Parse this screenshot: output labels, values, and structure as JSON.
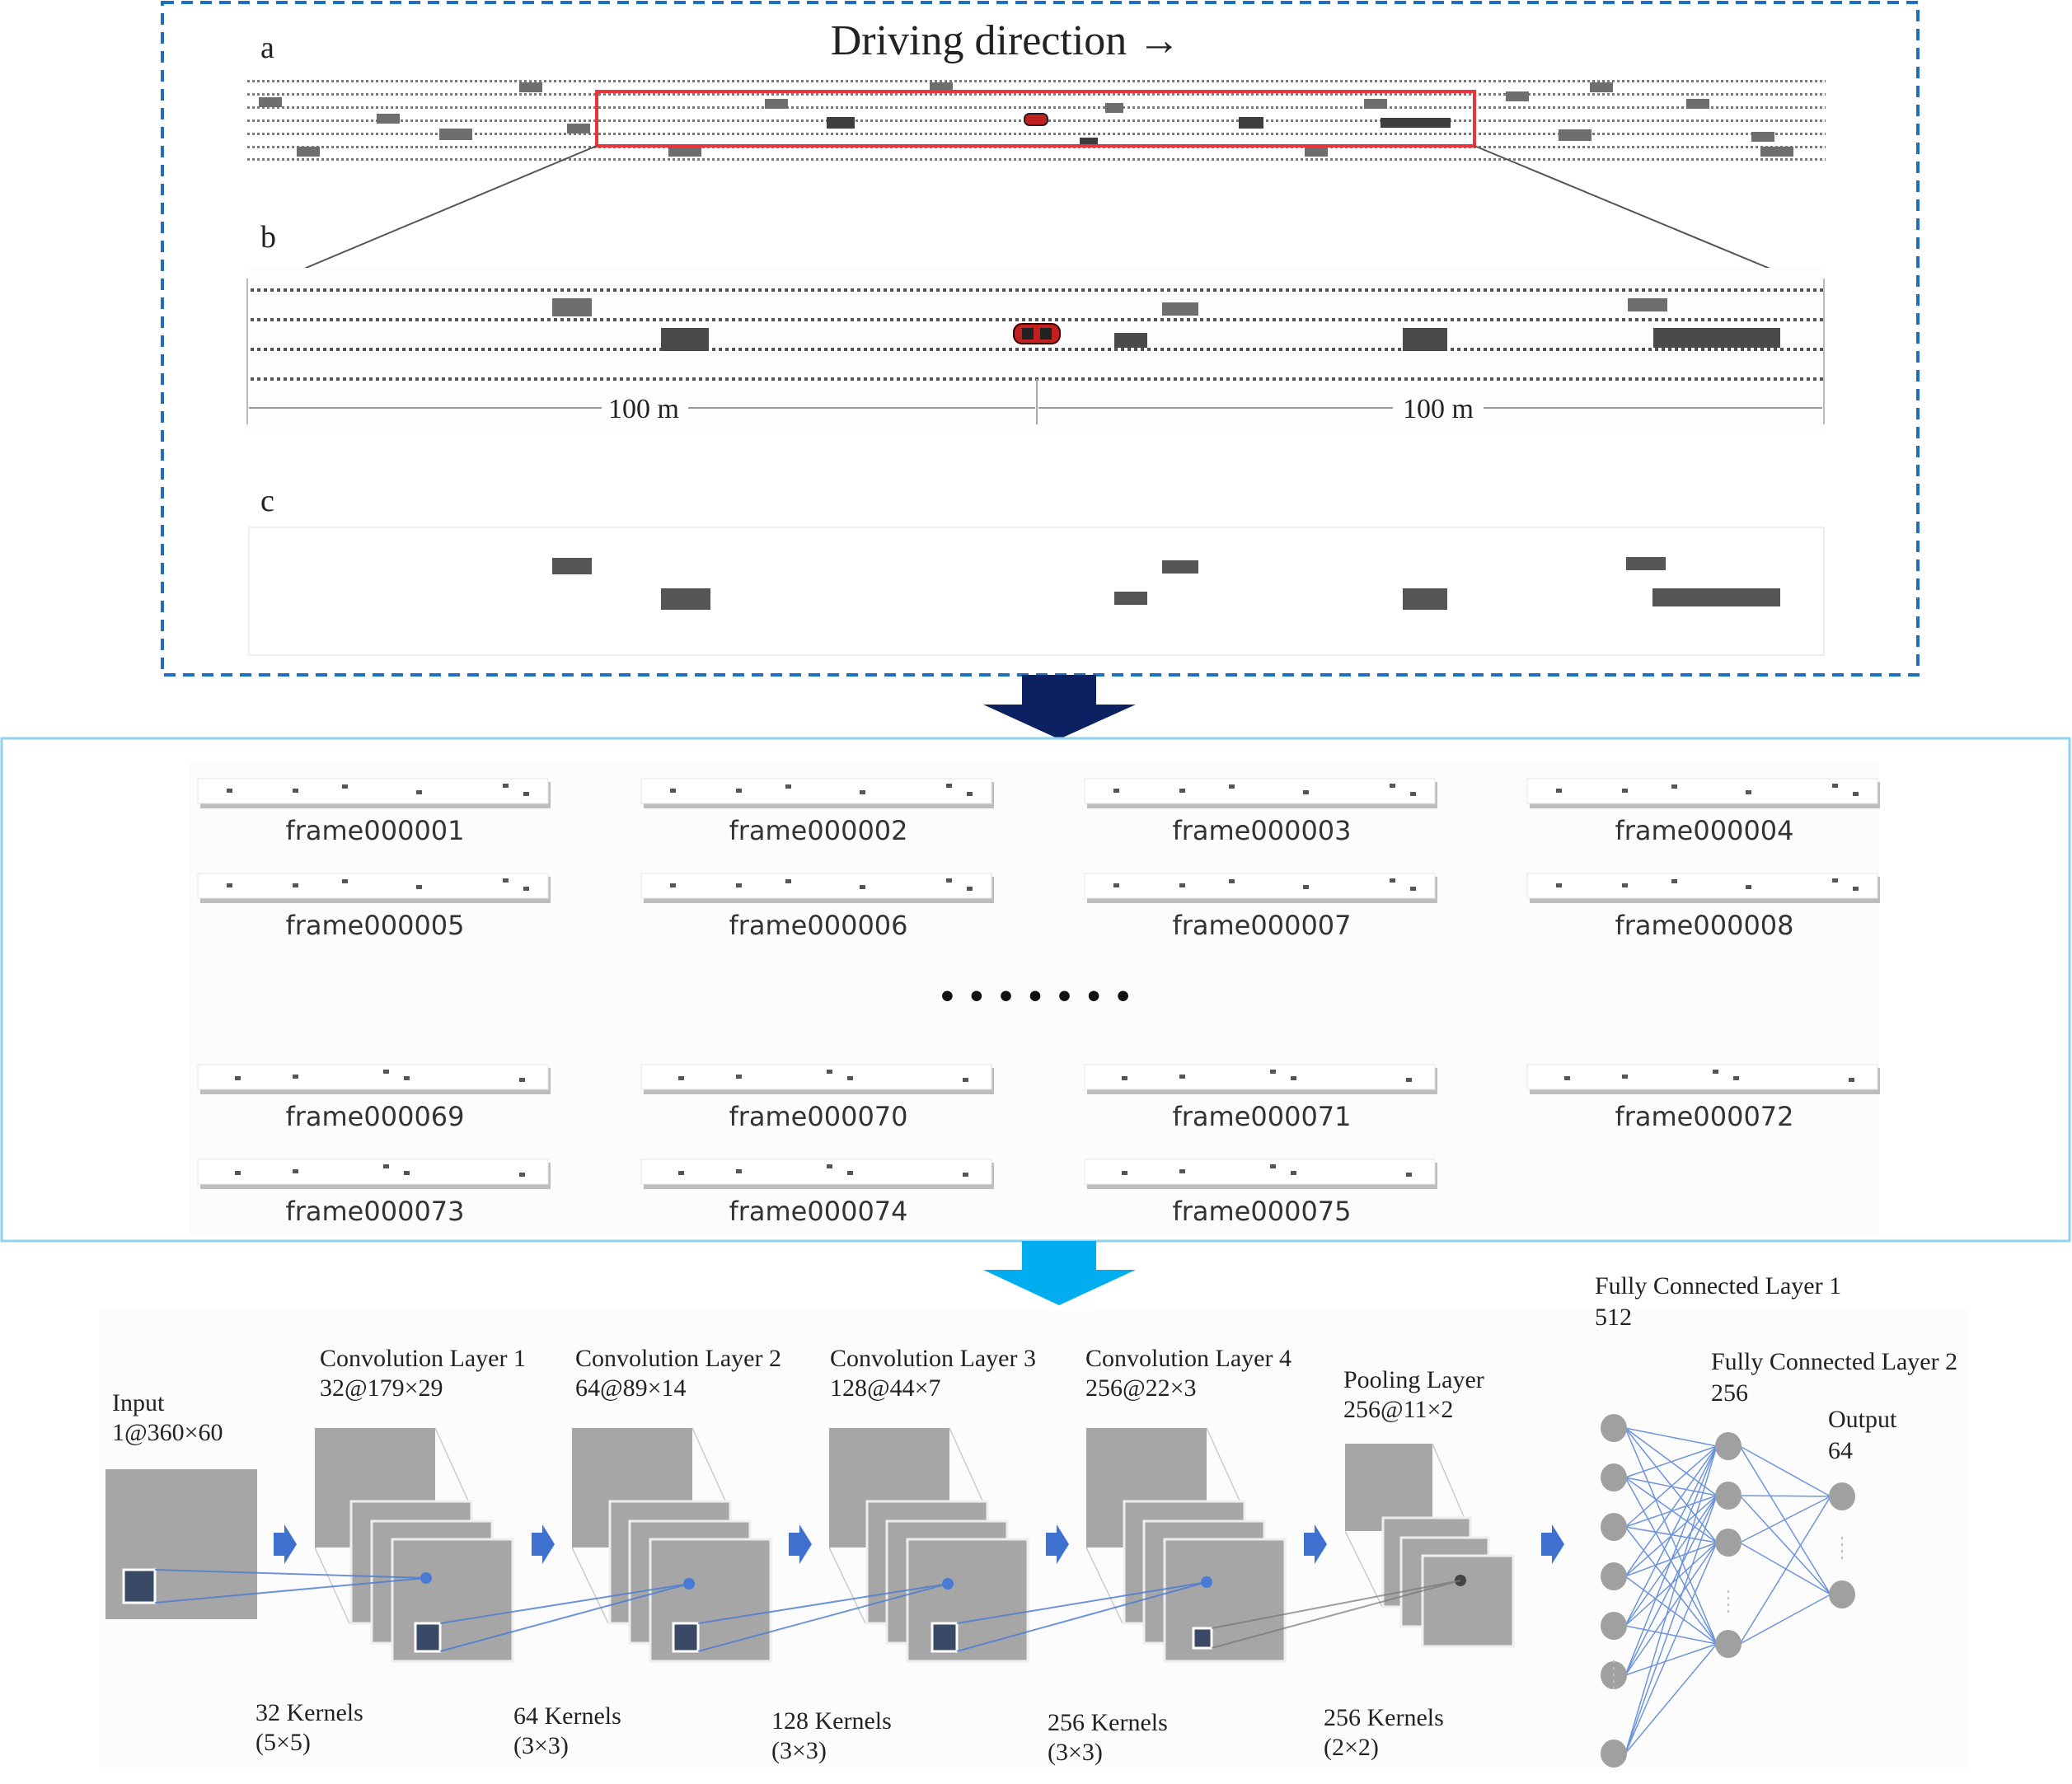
{
  "panel_top": {
    "title": "Driving direction →",
    "labels": {
      "a": "a",
      "b": "b",
      "c": "c"
    },
    "distance_left": "100 m",
    "distance_right": "100 m",
    "colors": {
      "border": "#1f6fbf",
      "highlight": "#e8343a",
      "ego_vehicle": "#c0211f",
      "vehicle": "#707070",
      "vehicle_dark": "#4a4a4a"
    }
  },
  "arrows": {
    "to_frames_color": "#0b2161",
    "to_cnn_color": "#00aeef"
  },
  "frames": {
    "border_color": "#8fd3ee",
    "ellipsis": "• • • • • • •",
    "rows": [
      [
        "frame000001",
        "frame000002",
        "frame000003",
        "frame000004"
      ],
      [
        "frame000005",
        "frame000006",
        "frame000007",
        "frame000008"
      ],
      [
        "frame000069",
        "frame000070",
        "frame000071",
        "frame000072"
      ],
      [
        "frame000073",
        "frame000074",
        "frame000075"
      ]
    ]
  },
  "cnn": {
    "input": {
      "title": "Input",
      "shape": "1@360×60"
    },
    "conv1": {
      "title": "Convolution Layer 1",
      "shape": "32@179×29",
      "kernels": "32 Kernels",
      "kernel_size": "(5×5)"
    },
    "conv2": {
      "title": "Convolution Layer 2",
      "shape": "64@89×14",
      "kernels": "64 Kernels",
      "kernel_size": "(3×3)"
    },
    "conv3": {
      "title": "Convolution Layer 3",
      "shape": "128@44×7",
      "kernels": "128 Kernels",
      "kernel_size": "(3×3)"
    },
    "conv4": {
      "title": "Convolution Layer 4",
      "shape": "256@22×3",
      "kernels": "256 Kernels",
      "kernel_size": "(3×3)"
    },
    "pool": {
      "title": "Pooling Layer",
      "shape": "256@11×2",
      "kernels": "256 Kernels",
      "kernel_size": "(2×2)"
    },
    "fc1": {
      "title": "Fully Connected Layer 1",
      "units": "512"
    },
    "fc2": {
      "title": "Fully Connected Layer 2",
      "units": "256"
    },
    "output": {
      "title": "Output",
      "units": "64"
    },
    "colors": {
      "map": "#a6a6a6",
      "kernel": "#3a4a66",
      "connection": "#4a7bd4",
      "node": "#a0a0a0",
      "step_arrow": "#3f72d0"
    }
  }
}
